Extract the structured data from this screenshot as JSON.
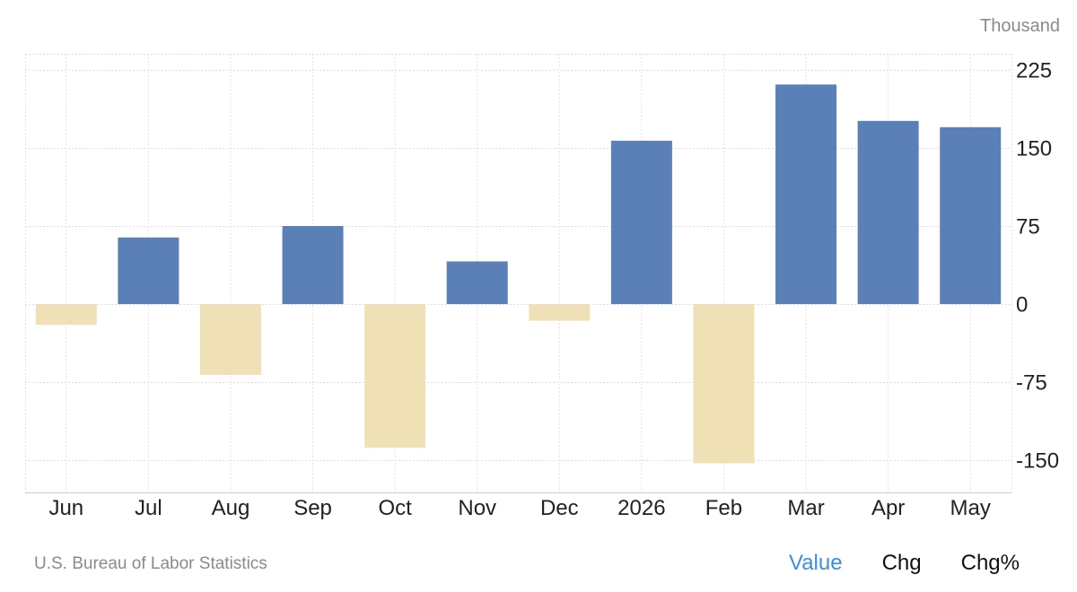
{
  "chart_data": {
    "type": "bar",
    "unit": "Thousand",
    "categories": [
      "Jun",
      "Jul",
      "Aug",
      "Sep",
      "Oct",
      "Nov",
      "Dec",
      "2026",
      "Feb",
      "Mar",
      "Apr",
      "May"
    ],
    "values": [
      -20,
      64,
      -68,
      75,
      -138,
      41,
      -16,
      157,
      -153,
      211,
      176,
      170
    ],
    "yticks": [
      225,
      150,
      75,
      0,
      -75,
      -150
    ],
    "ylim": [
      -180,
      240
    ],
    "colors": {
      "positive": "#5b80b8",
      "negative": "#f0e0b6"
    },
    "grid": true
  },
  "footer": {
    "source": "U.S. Bureau of Labor Statistics",
    "toggles": [
      {
        "label": "Value",
        "active": true
      },
      {
        "label": "Chg",
        "active": false
      },
      {
        "label": "Chg%",
        "active": false
      }
    ]
  }
}
